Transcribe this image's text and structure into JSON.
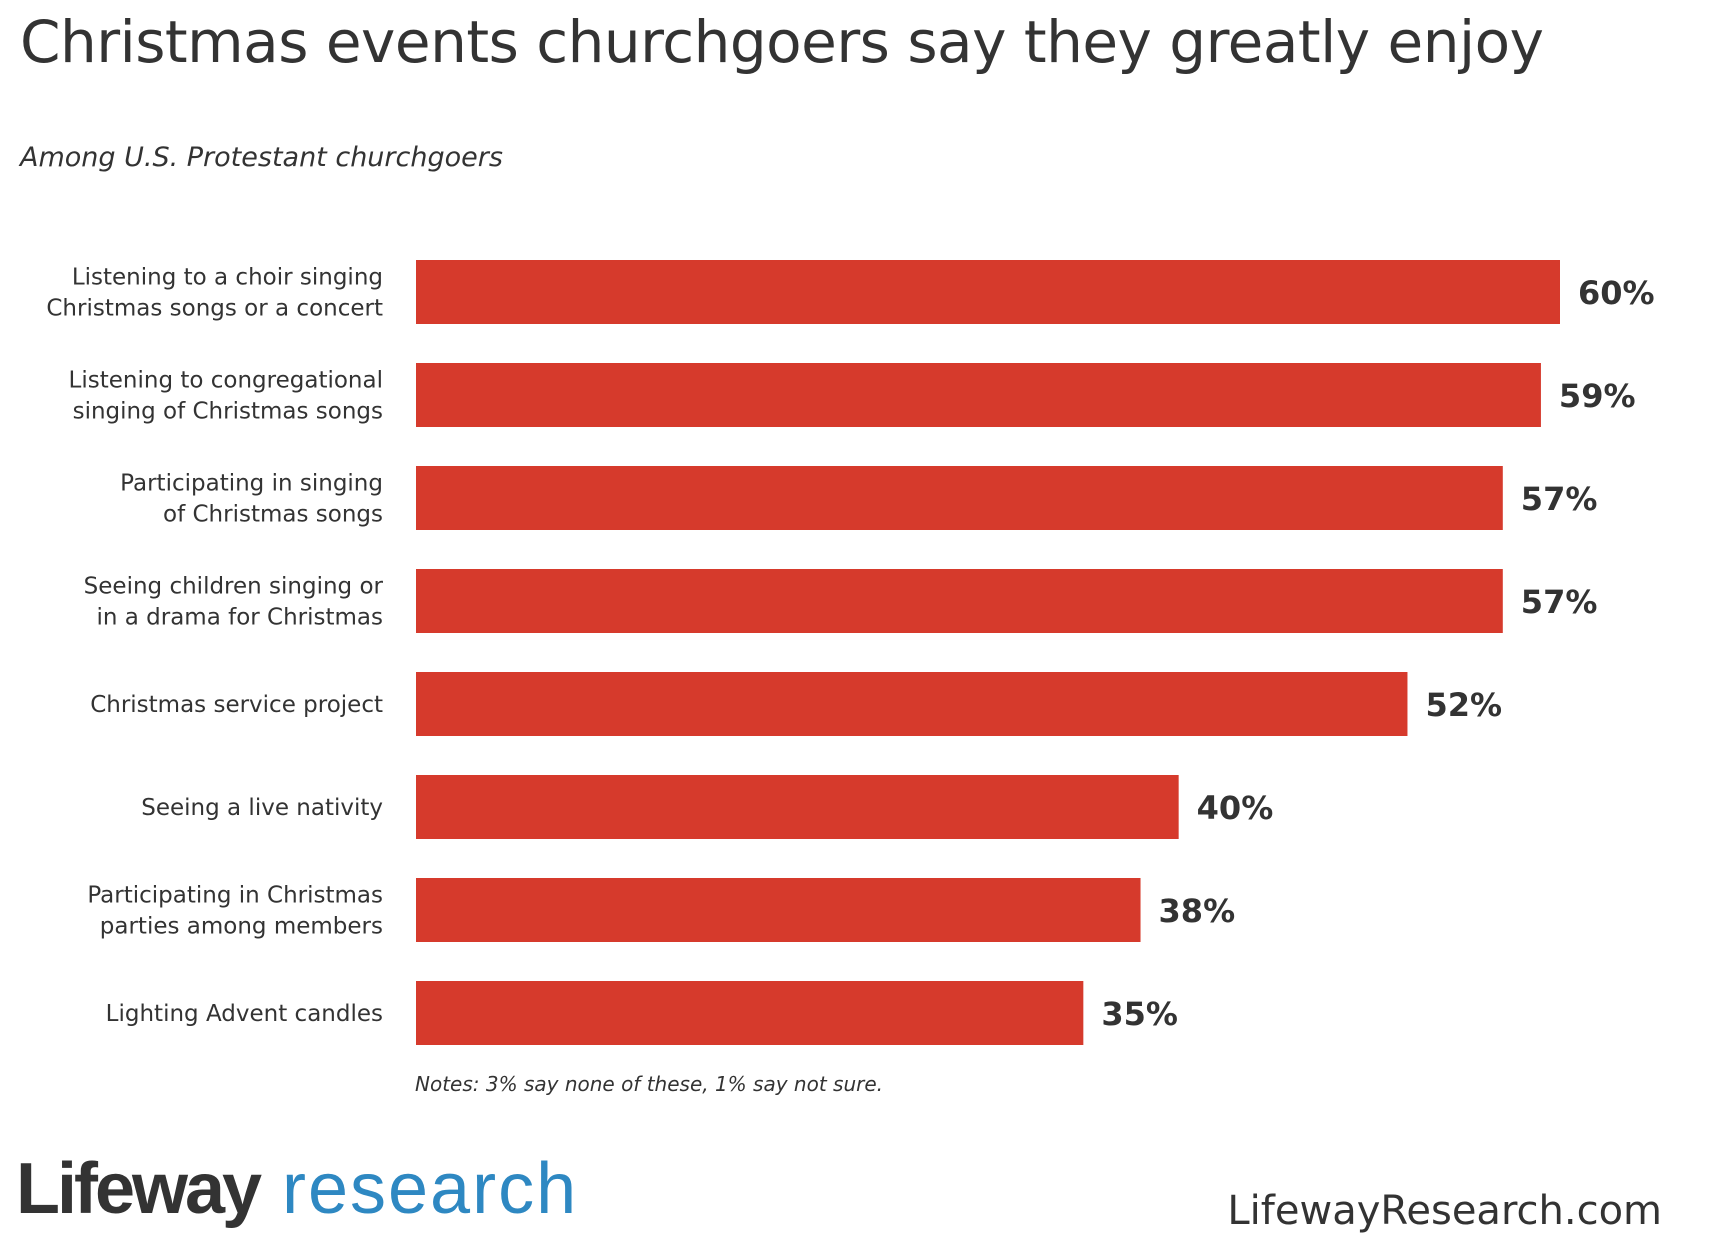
{
  "header": {
    "title": "Christmas events churchgoers say they greatly enjoy",
    "subtitle": "Among U.S. Protestant churchgoers"
  },
  "footer": {
    "notes": "Notes: 3% say none of these, 1% say not sure.",
    "logo_word1": "Lifeway",
    "logo_word2": "research",
    "website": "LifewayResearch.com"
  },
  "colors": {
    "bar": "#d63a2c",
    "text": "#333333",
    "brand_blue": "#2e88c2"
  },
  "chart_data": {
    "type": "bar",
    "orientation": "horizontal",
    "title": "Christmas events churchgoers say they greatly enjoy",
    "subtitle": "Among U.S. Protestant churchgoers",
    "value_format": "percent",
    "xlim": [
      0,
      60
    ],
    "grid": false,
    "legend": "none",
    "categories": [
      [
        "Listening to a choir singing",
        "Christmas songs or a concert"
      ],
      [
        "Listening to congregational",
        "singing of Christmas songs"
      ],
      [
        "Participating in singing",
        "of Christmas songs"
      ],
      [
        "Seeing children singing or",
        "in a drama for Christmas"
      ],
      [
        "Christmas service project"
      ],
      [
        "Seeing a live nativity"
      ],
      [
        "Participating in Christmas",
        "parties among members"
      ],
      [
        "Lighting Advent candles"
      ]
    ],
    "values": [
      60,
      59,
      57,
      57,
      52,
      40,
      38,
      35
    ],
    "value_labels": [
      "60%",
      "59%",
      "57%",
      "57%",
      "52%",
      "40%",
      "38%",
      "35%"
    ]
  }
}
